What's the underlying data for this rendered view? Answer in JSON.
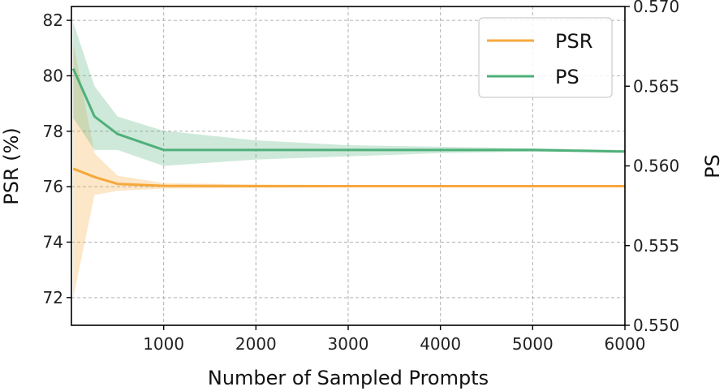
{
  "chart_data": {
    "type": "line",
    "title": "",
    "xlabel": "Number of Sampled Prompts",
    "ylabel_left": "PSR (%)",
    "ylabel_right": "PS",
    "xlim": [
      0,
      6000
    ],
    "ylim_left": [
      71,
      82.5
    ],
    "ylim_right": [
      0.55,
      0.57
    ],
    "x_ticks": [
      1000,
      2000,
      3000,
      4000,
      5000,
      6000
    ],
    "y_left_ticks": [
      72,
      74,
      76,
      78,
      80,
      82
    ],
    "y_right_ticks": [
      "0.550",
      "0.555",
      "0.560",
      "0.565",
      "0.570"
    ],
    "grid": true,
    "legend_position": "top-right",
    "series": [
      {
        "name": "PSR",
        "axis": "left",
        "color": "#f5a83c",
        "x": [
          20,
          250,
          500,
          1000,
          2000,
          3000,
          4000,
          5000,
          6000
        ],
        "values": [
          76.65,
          76.35,
          76.1,
          76.03,
          76.02,
          76.02,
          76.02,
          76.02,
          76.02
        ],
        "lower": [
          72.0,
          75.7,
          75.85,
          75.93,
          75.96,
          75.98,
          75.99,
          75.99,
          76.0
        ],
        "upper": [
          81.2,
          77.2,
          76.4,
          76.13,
          76.08,
          76.06,
          76.05,
          76.04,
          76.04
        ]
      },
      {
        "name": "PS",
        "axis": "right",
        "color": "#4fb07a",
        "x": [
          20,
          250,
          500,
          1000,
          2000,
          3000,
          4000,
          5000,
          6000
        ],
        "values": [
          0.5661,
          0.5631,
          0.562,
          0.561,
          0.561,
          0.561,
          0.561,
          0.561,
          0.5609
        ],
        "lower": [
          0.563,
          0.561,
          0.561,
          0.56,
          0.5604,
          0.5606,
          0.5608,
          0.5609,
          0.5609
        ],
        "upper": [
          0.569,
          0.565,
          0.5631,
          0.5622,
          0.5616,
          0.5613,
          0.5612,
          0.5611,
          0.561
        ]
      }
    ]
  }
}
